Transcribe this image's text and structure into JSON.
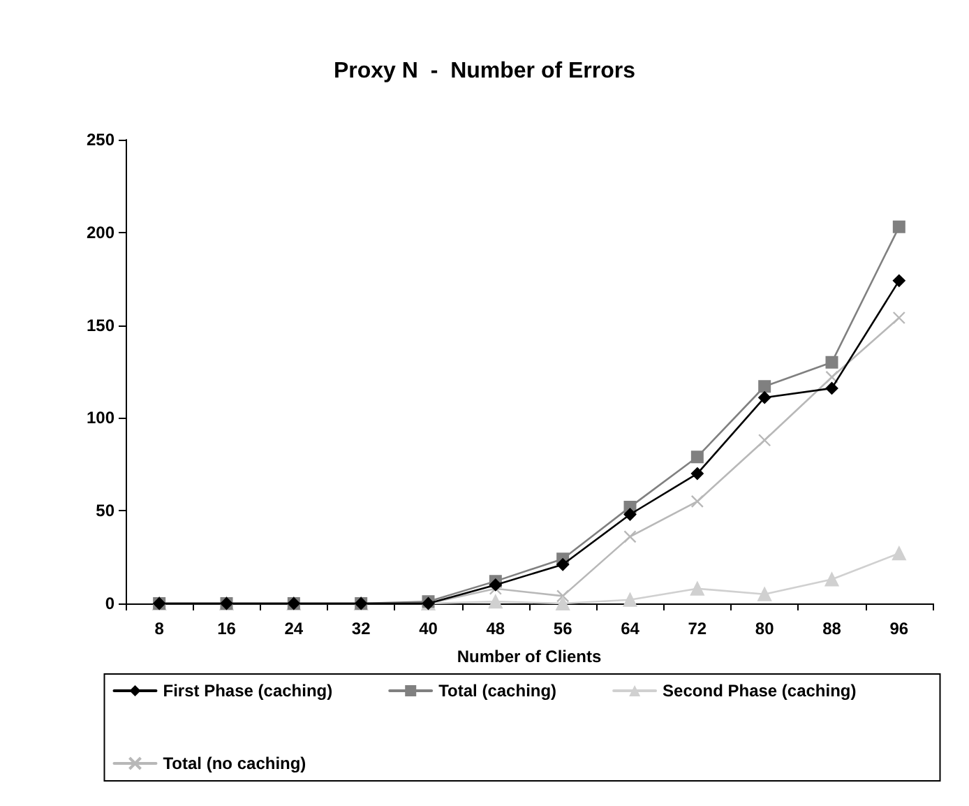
{
  "chart_data": {
    "type": "line",
    "title": "Proxy N  -  Number of Errors",
    "xlabel": "Number of Clients",
    "categories": [
      "8",
      "16",
      "24",
      "32",
      "40",
      "48",
      "56",
      "64",
      "72",
      "80",
      "88",
      "96"
    ],
    "series": [
      {
        "name": "First Phase (caching)",
        "color": "#000000",
        "marker": "diamond",
        "values": [
          0,
          0,
          0,
          0,
          0,
          10,
          21,
          48,
          70,
          111,
          116,
          174
        ]
      },
      {
        "name": "Total (caching)",
        "color": "#808080",
        "marker": "square",
        "values": [
          0,
          0,
          0,
          0,
          1,
          12,
          24,
          52,
          79,
          117,
          130,
          203
        ]
      },
      {
        "name": "Second Phase (caching)",
        "color": "#d0d0d0",
        "marker": "triangle",
        "values": [
          0,
          0,
          0,
          0,
          0,
          1,
          0,
          2,
          8,
          5,
          13,
          27
        ]
      },
      {
        "name": "Total (no caching)",
        "color": "#b8b8b8",
        "marker": "cross",
        "values": [
          0,
          0,
          0,
          0,
          0,
          8,
          4,
          36,
          55,
          88,
          122,
          154
        ]
      }
    ],
    "ylim": [
      0,
      250
    ],
    "yticks": [
      0,
      50,
      100,
      150,
      200,
      250
    ],
    "grid": false,
    "legend": "bottom",
    "line_style": "solid"
  }
}
